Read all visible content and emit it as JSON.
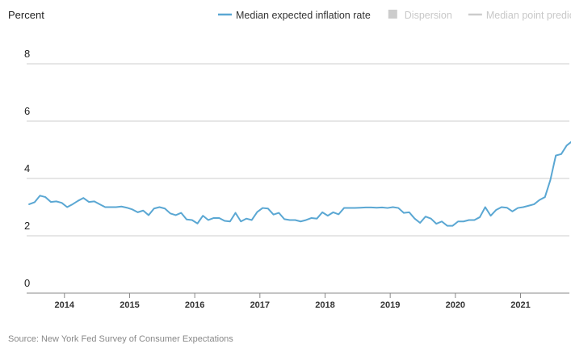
{
  "chart_data": {
    "type": "line",
    "ylabel": "Percent",
    "ylim": [
      0,
      8
    ],
    "yticks": [
      "0",
      "2",
      "4",
      "6",
      "8"
    ],
    "xlim": [
      2013.42,
      2021.75
    ],
    "xticks": [
      {
        "value": 2014,
        "label": "2014"
      },
      {
        "value": 2015,
        "label": "2015"
      },
      {
        "value": 2016,
        "label": "2016"
      },
      {
        "value": 2017,
        "label": "2017"
      },
      {
        "value": 2018,
        "label": "2018"
      },
      {
        "value": 2019,
        "label": "2019"
      },
      {
        "value": 2020,
        "label": "2020"
      },
      {
        "value": 2021,
        "label": "2021"
      }
    ],
    "grid": true,
    "legend_position": "top-right",
    "legend": [
      {
        "name": "Median expected inflation rate",
        "color": "#5aa7d3",
        "kind": "line",
        "active": true
      },
      {
        "name": "Dispersion",
        "color": "#cccccc",
        "kind": "box",
        "active": false
      },
      {
        "name": "Median point prediction",
        "color": "#cccccc",
        "kind": "line",
        "active": false
      }
    ],
    "series": [
      {
        "name": "Median expected inflation rate",
        "color": "#5aa7d3",
        "start": "2013-06",
        "values": [
          3.1,
          3.17,
          3.4,
          3.35,
          3.18,
          3.2,
          3.15,
          3.0,
          3.1,
          3.22,
          3.32,
          3.18,
          3.2,
          3.1,
          3.0,
          3.0,
          3.0,
          3.02,
          2.98,
          2.92,
          2.82,
          2.88,
          2.72,
          2.95,
          3.0,
          2.95,
          2.78,
          2.72,
          2.8,
          2.57,
          2.55,
          2.43,
          2.7,
          2.55,
          2.62,
          2.62,
          2.52,
          2.5,
          2.8,
          2.5,
          2.6,
          2.55,
          2.83,
          2.97,
          2.95,
          2.74,
          2.8,
          2.58,
          2.55,
          2.55,
          2.5,
          2.55,
          2.62,
          2.6,
          2.82,
          2.7,
          2.82,
          2.75,
          2.97,
          2.97,
          2.97,
          2.98,
          2.99,
          2.99,
          2.98,
          2.99,
          2.97,
          3.0,
          2.97,
          2.8,
          2.82,
          2.6,
          2.45,
          2.67,
          2.6,
          2.42,
          2.5,
          2.35,
          2.35,
          2.5,
          2.5,
          2.55,
          2.55,
          2.65,
          3.0,
          2.7,
          2.9,
          3.0,
          2.98,
          2.85,
          2.97,
          3.0,
          3.05,
          3.1,
          3.25,
          3.35,
          3.95,
          4.8,
          4.85,
          5.15,
          5.3
        ]
      }
    ],
    "source": "Source: New York Fed Survey of Consumer Expectations"
  }
}
